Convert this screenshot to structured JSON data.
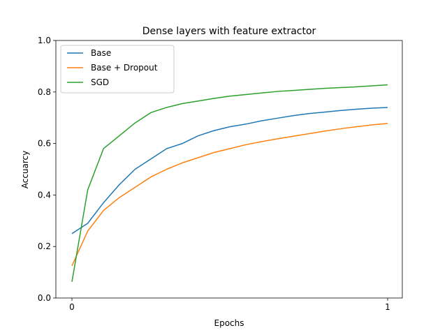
{
  "chart_data": {
    "type": "line",
    "title": "Dense layers with feature extractor",
    "xlabel": "Epochs",
    "ylabel": "Accuarcy",
    "xlim": [
      0,
      1
    ],
    "ylim": [
      0,
      1.0
    ],
    "x_ticks": [
      0,
      1
    ],
    "x_tick_labels": [
      "0",
      "1"
    ],
    "y_ticks": [
      0,
      0.2,
      0.4,
      0.6,
      0.8,
      1.0
    ],
    "y_tick_labels": [
      "0.0",
      "0.2",
      "0.4",
      "0.6",
      "0.8",
      "1.0"
    ],
    "grid": false,
    "legend_position": "upper-left",
    "x": [
      0,
      0.05,
      0.1,
      0.15,
      0.2,
      0.25,
      0.3,
      0.35,
      0.4,
      0.45,
      0.5,
      0.55,
      0.6,
      0.65,
      0.7,
      0.75,
      0.8,
      0.85,
      0.9,
      0.95,
      1.0
    ],
    "series": [
      {
        "name": "Base",
        "color": "#1f77b4",
        "values": [
          0.25,
          0.29,
          0.37,
          0.44,
          0.5,
          0.54,
          0.58,
          0.6,
          0.63,
          0.65,
          0.665,
          0.675,
          0.688,
          0.698,
          0.708,
          0.716,
          0.722,
          0.728,
          0.733,
          0.737,
          0.74
        ]
      },
      {
        "name": "Base + Dropout",
        "color": "#ff7f0e",
        "values": [
          0.125,
          0.26,
          0.34,
          0.39,
          0.43,
          0.47,
          0.5,
          0.525,
          0.545,
          0.565,
          0.58,
          0.595,
          0.607,
          0.618,
          0.628,
          0.638,
          0.648,
          0.657,
          0.665,
          0.672,
          0.678
        ]
      },
      {
        "name": "SGD",
        "color": "#2ca02c",
        "values": [
          0.063,
          0.42,
          0.58,
          0.63,
          0.68,
          0.72,
          0.74,
          0.755,
          0.765,
          0.775,
          0.784,
          0.79,
          0.796,
          0.802,
          0.806,
          0.81,
          0.814,
          0.817,
          0.82,
          0.824,
          0.828
        ]
      }
    ]
  }
}
